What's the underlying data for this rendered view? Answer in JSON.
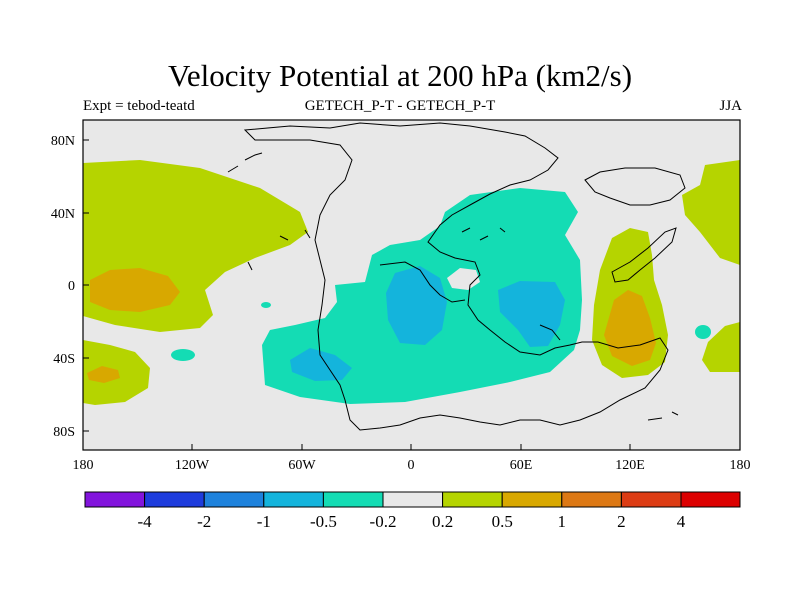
{
  "title": "Velocity Potential at 200 hPa (km2/s)",
  "left_string": "Expt = tebod-teatd",
  "center_string": "GETECH_P-T - GETECH_P-T",
  "right_string": "JJA",
  "map": {
    "lat_ticks": [
      "80N",
      "40N",
      "0",
      "40S",
      "80S"
    ],
    "lon_ticks": [
      "180",
      "120W",
      "60W",
      "0",
      "60E",
      "120E",
      "180"
    ],
    "colors": {
      "background": "#e8e8e8",
      "pos_0_2": "#b5d400",
      "pos_0_5": "#d8a800",
      "neg_0_2": "#14dcb4",
      "neg_0_5": "#14b4dc",
      "coast": "#000000"
    }
  },
  "colorbar": {
    "labels": [
      "-4",
      "-2",
      "-1",
      "-0.5",
      "-0.2",
      "0.2",
      "0.5",
      "1",
      "2",
      "4"
    ],
    "colors": [
      "#8214dc",
      "#1e3cdc",
      "#1e82dc",
      "#14b4dc",
      "#14dcb4",
      "#e8e8e8",
      "#b5d400",
      "#d8a800",
      "#dc7814",
      "#dc3c14",
      "#dc0000"
    ]
  }
}
